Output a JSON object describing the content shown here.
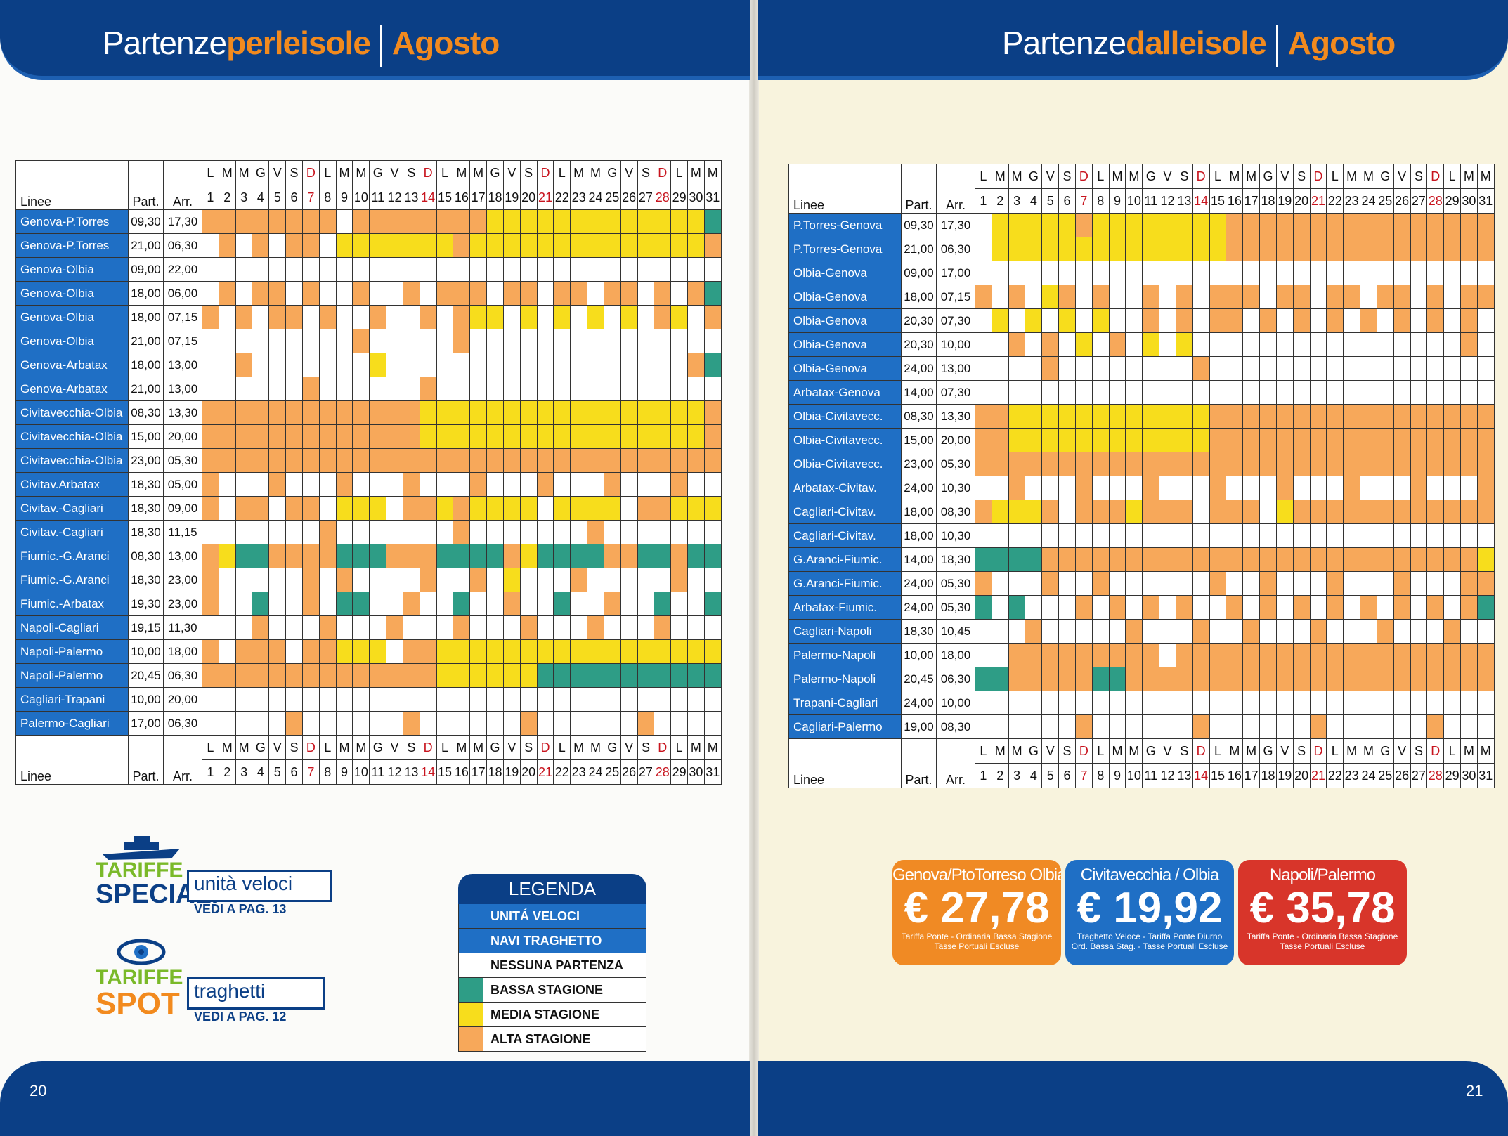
{
  "left": {
    "title_plain": "Partenze",
    "title_orange": "perleisole",
    "month": "Agosto",
    "page_number": "20",
    "header_days": [
      "L",
      "M",
      "M",
      "G",
      "V",
      "S",
      "D",
      "L",
      "M",
      "M",
      "G",
      "V",
      "S",
      "D",
      "L",
      "M",
      "M",
      "G",
      "V",
      "S",
      "D",
      "L",
      "M",
      "M",
      "G",
      "V",
      "S",
      "D",
      "L",
      "M",
      "M"
    ],
    "header_nums": [
      "1",
      "2",
      "3",
      "4",
      "5",
      "6",
      "7",
      "8",
      "9",
      "10",
      "11",
      "12",
      "13",
      "14",
      "15",
      "16",
      "17",
      "18",
      "19",
      "20",
      "21",
      "22",
      "23",
      "24",
      "25",
      "26",
      "27",
      "28",
      "29",
      "30",
      "31"
    ],
    "col_linee": "Linee",
    "col_part": "Part.",
    "col_arr": "Arr.",
    "rows": [
      {
        "route": "Genova-P.Torres",
        "part": "09,30",
        "arr": "17,30",
        "cells": "1111111101111111122222222222223"
      },
      {
        "route": "Genova-P.Torres",
        "part": "21,00",
        "arr": "06,30",
        "cells": "0101011022222221222222222222221"
      },
      {
        "route": "Genova-Olbia",
        "part": "09,00",
        "arr": "22,00",
        "cells": "0000000000000000000000000000000"
      },
      {
        "route": "Genova-Olbia",
        "part": "18,00",
        "arr": "06,00",
        "cells": "0101101001001011101101101101013"
      },
      {
        "route": "Genova-Olbia",
        "part": "18,00",
        "arr": "07,15",
        "cells": "1010110100100101220202020201201"
      },
      {
        "route": "Genova-Olbia",
        "part": "21,00",
        "arr": "07,15",
        "cells": "0000000001000001000000000000000"
      },
      {
        "route": "Genova-Arbatax",
        "part": "18,00",
        "arr": "13,00",
        "cells": "0010000000200000000000000000013"
      },
      {
        "route": "Genova-Arbatax",
        "part": "21,00",
        "arr": "13,00",
        "cells": "0000001000000100000000000000000"
      },
      {
        "route": "Civitavecchia-Olbia",
        "part": "08,30",
        "arr": "13,30",
        "cells": "1111111111111222222222222222221"
      },
      {
        "route": "Civitavecchia-Olbia",
        "part": "15,00",
        "arr": "20,00",
        "cells": "1111111111111222222222222222221"
      },
      {
        "route": "Civitavecchia-Olbia",
        "part": "23,00",
        "arr": "05,30",
        "cells": "1111111111111111111111111111111"
      },
      {
        "route": "Civitav.Arbatax",
        "part": "18,30",
        "arr": "05,00",
        "cells": "1000100010001000100010001000100"
      },
      {
        "route": "Civitav.-Cagliari",
        "part": "18,30",
        "arr": "09,00",
        "cells": "1011011022201121222202222011222"
      },
      {
        "route": "Civitav.-Cagliari",
        "part": "18,30",
        "arr": "11,15",
        "cells": "0000000100000001000000010000000"
      },
      {
        "route": "Fiumic.-G.Aranci",
        "part": "08,30",
        "arr": "13,00",
        "cells": "1233111133311133331233331133133"
      },
      {
        "route": "Fiumic.-G.Aranci",
        "part": "18,30",
        "arr": "23,00",
        "cells": "1000001010000100102000100000100"
      },
      {
        "route": "Fiumic.-Arbatax",
        "part": "19,30",
        "arr": "23,00",
        "cells": "1003001033001003001003001003003"
      },
      {
        "route": "Napoli-Cagliari",
        "part": "19,15",
        "arr": "11,30",
        "cells": "0001000100010001000100010001000"
      },
      {
        "route": "Napoli-Palermo",
        "part": "10,00",
        "arr": "18,00",
        "cells": "1011101122201122222222222222222"
      },
      {
        "route": "Napoli-Palermo",
        "part": "20,45",
        "arr": "06,30",
        "cells": "1111111111111122222233333333333"
      },
      {
        "route": "Cagliari-Trapani",
        "part": "10,00",
        "arr": "20,00",
        "cells": "0000000000000000000000000000000"
      },
      {
        "route": "Palermo-Cagliari",
        "part": "17,00",
        "arr": "06,30",
        "cells": "0000010000001000000100000010000"
      }
    ]
  },
  "right": {
    "title_plain": "Partenze",
    "title_orange": "dalleisole",
    "month": "Agosto",
    "page_number": "21",
    "header_days": [
      "L",
      "M",
      "M",
      "G",
      "V",
      "S",
      "D",
      "L",
      "M",
      "M",
      "G",
      "V",
      "S",
      "D",
      "L",
      "M",
      "M",
      "G",
      "V",
      "S",
      "D",
      "L",
      "M",
      "M",
      "G",
      "V",
      "S",
      "D",
      "L",
      "M",
      "M"
    ],
    "header_nums": [
      "1",
      "2",
      "3",
      "4",
      "5",
      "6",
      "7",
      "8",
      "9",
      "10",
      "11",
      "12",
      "13",
      "14",
      "15",
      "16",
      "17",
      "18",
      "19",
      "20",
      "21",
      "22",
      "23",
      "24",
      "25",
      "26",
      "27",
      "28",
      "29",
      "30",
      "31"
    ],
    "col_linee": "Linee",
    "col_part": "Part.",
    "col_arr": "Arr.",
    "rows": [
      {
        "route": "P.Torres-Genova",
        "part": "09,30",
        "arr": "17,30",
        "cells": "0222221222222221111111111111111"
      },
      {
        "route": "P.Torres-Genova",
        "part": "21,00",
        "arr": "06,30",
        "cells": "0222222222222221111111111111111"
      },
      {
        "route": "Olbia-Genova",
        "part": "09,00",
        "arr": "17,00",
        "cells": "0000000000000000000000000000000"
      },
      {
        "route": "Olbia-Genova",
        "part": "18,00",
        "arr": "07,15",
        "cells": "1010210100101011101101101101011"
      },
      {
        "route": "Olbia-Genova",
        "part": "20,30",
        "arr": "07,30",
        "cells": "0202020200101011010101010101010"
      },
      {
        "route": "Olbia-Genova",
        "part": "20,30",
        "arr": "10,00",
        "cells": "0010102010202000000000000000010"
      },
      {
        "route": "Olbia-Genova",
        "part": "24,00",
        "arr": "13,00",
        "cells": "0000100000000100000000000000000"
      },
      {
        "route": "Arbatax-Genova",
        "part": "14,00",
        "arr": "07,30",
        "cells": "0000000000000000000000000000000"
      },
      {
        "route": "Olbia-Civitavecc.",
        "part": "08,30",
        "arr": "13,30",
        "cells": "1122222222222211111111111111111"
      },
      {
        "route": "Olbia-Civitavecc.",
        "part": "15,00",
        "arr": "20,00",
        "cells": "1122222222222211111111111111111"
      },
      {
        "route": "Olbia-Civitavecc.",
        "part": "23,00",
        "arr": "05,30",
        "cells": "1111111111111111111111111111111"
      },
      {
        "route": "Arbatax-Civitav.",
        "part": "24,00",
        "arr": "10,30",
        "cells": "0010001000100010001000100010001"
      },
      {
        "route": "Cagliari-Civitav.",
        "part": "18,00",
        "arr": "08,30",
        "cells": "1222101112111011102111111111111"
      },
      {
        "route": "Cagliari-Civitav.",
        "part": "18,00",
        "arr": "10,30",
        "cells": "0000000000000000000000000000000"
      },
      {
        "route": "G.Aranci-Fiumic.",
        "part": "14,00",
        "arr": "18,30",
        "cells": "3333111111111111111111111111112"
      },
      {
        "route": "G.Aranci-Fiumic.",
        "part": "24,00",
        "arr": "05,30",
        "cells": "1000100100000010010001000100011"
      },
      {
        "route": "Arbatax-Fiumic.",
        "part": "24,00",
        "arr": "05,30",
        "cells": "3030001010101001010101010101013"
      },
      {
        "route": "Cagliari-Napoli",
        "part": "18,30",
        "arr": "10,45",
        "cells": "0001000001000100100010001000100"
      },
      {
        "route": "Palermo-Napoli",
        "part": "10,00",
        "arr": "18,00",
        "cells": "0011111111101111111111111111111"
      },
      {
        "route": "Palermo-Napoli",
        "part": "20,45",
        "arr": "06,30",
        "cells": "3311111331111111111111111111111"
      },
      {
        "route": "Trapani-Cagliari",
        "part": "24,00",
        "arr": "10,00",
        "cells": "0000000000000000000000000000000"
      },
      {
        "route": "Cagliari-Palermo",
        "part": "19,00",
        "arr": "08,30",
        "cells": "0000001000000100000010000001000"
      }
    ]
  },
  "legend": {
    "title": "LEGENDA",
    "items": [
      {
        "label": "UNITÁ VELOCI",
        "swatch": "#1f6fc5"
      },
      {
        "label": "NAVI TRAGHETTO",
        "swatch": "#1f6fc5"
      },
      {
        "label": "NESSUNA PARTENZA",
        "swatch": "#ffffff"
      },
      {
        "label": "BASSA STAGIONE",
        "swatch": "#2e9d86"
      },
      {
        "label": "MEDIA STAGIONE",
        "swatch": "#f7dd1c"
      },
      {
        "label": "ALTA STAGIONE",
        "swatch": "#f7a85a"
      }
    ]
  },
  "promos": {
    "speciali": {
      "logo_top": "TARIFFE",
      "logo_bottom": "SPECIALI",
      "title": "unità veloci",
      "sub": "VEDI A PAG. 13"
    },
    "spot": {
      "logo_top": "TARIFFE",
      "logo_bottom": "SPOT",
      "title": "traghetti",
      "sub": "VEDI A PAG. 12"
    }
  },
  "prices": [
    {
      "route": "Genova/PtoTorreso Olbia",
      "price": "€ 27,78",
      "note1": "Tariffa Ponte - Ordinaria Bassa Stagione",
      "note2": "Tasse Portuali Escluse",
      "color": "#f08a24"
    },
    {
      "route": "Civitavecchia / Olbia",
      "price": "€ 19,92",
      "note1": "Traghetto Veloce - Tariffa Ponte Diurno",
      "note2": "Ord. Bassa Stag. - Tasse Portuali Escluse",
      "color": "#1f6fc5"
    },
    {
      "route": "Napoli/Palermo",
      "price": "€ 35,78",
      "note1": "Tariffa Ponte - Ordinaria Bassa Stagione",
      "note2": "Tasse Portuali Escluse",
      "color": "#d8352a"
    }
  ],
  "colors": {
    "alta": "#f7a85a",
    "media": "#f7dd1c",
    "bassa": "#2e9d86",
    "route": "#1f6fc5",
    "banner": "#0b3f86"
  }
}
